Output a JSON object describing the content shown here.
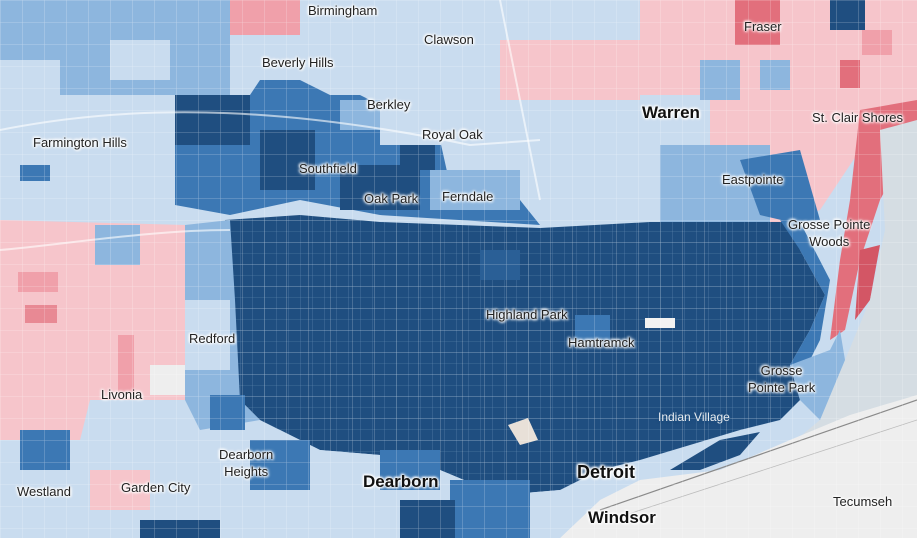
{
  "map": {
    "colors": {
      "dem_strong": "#1f4e80",
      "dem_mid": "#3c78b4",
      "dem_light": "#8db6de",
      "dem_pale": "#c9dcef",
      "rep_pale": "#f6c5cb",
      "rep_light": "#f0a0aa",
      "rep_mid": "#e26f7c",
      "water": "#d5dde3",
      "canada_land": "#eeeeee"
    },
    "labels": {
      "birmingham": "Birmingham",
      "clawson": "Clawson",
      "fraser": "Fraser",
      "beverly_hills": "Beverly Hills",
      "warren": "Warren",
      "st_clair_shores": "St. Clair Shores",
      "berkley": "Berkley",
      "royal_oak": "Royal Oak",
      "farmington_hills": "Farmington Hills",
      "southfield": "Southfield",
      "oak_park": "Oak Park",
      "ferndale": "Ferndale",
      "eastpointe": "Eastpointe",
      "grosse_pointe_woods_1": "Grosse Pointe",
      "grosse_pointe_woods_2": "Woods",
      "highland_park": "Highland Park",
      "redford": "Redford",
      "hamtramck": "Hamtramck",
      "livonia": "Livonia",
      "grosse_pointe_park_1": "Grosse",
      "grosse_pointe_park_2": "Pointe Park",
      "indian_village": "Indian Village",
      "dearborn_heights_1": "Dearborn",
      "dearborn_heights_2": "Heights",
      "dearborn": "Dearborn",
      "detroit": "Detroit",
      "westland": "Westland",
      "garden_city": "Garden City",
      "windsor": "Windsor",
      "tecumseh": "Tecumseh"
    }
  }
}
